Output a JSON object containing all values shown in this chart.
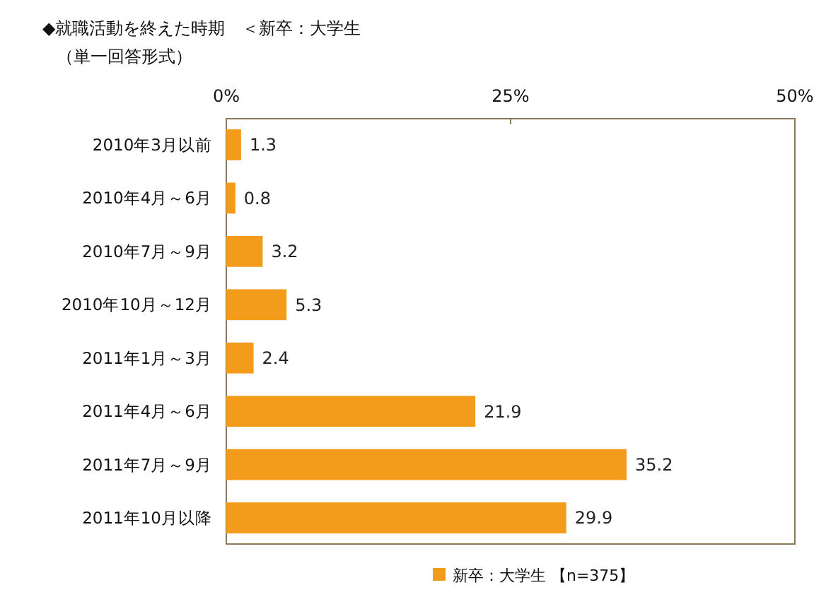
{
  "chart_data": {
    "type": "bar",
    "orientation": "horizontal",
    "title": "◆就職活動を終えた時期　＜新卒：大学生",
    "subtitle": "（単一回答形式）",
    "categories": [
      "2010年3月以前",
      "2010年4月～6月",
      "2010年7月～9月",
      "2010年10月～12月",
      "2011年1月～3月",
      "2011年4月～6月",
      "2011年7月～9月",
      "2011年10月以降"
    ],
    "series": [
      {
        "name": "新卒：大学生 【n=375】",
        "color": "#f39c1b",
        "values": [
          1.3,
          0.8,
          3.2,
          5.3,
          2.4,
          21.9,
          35.2,
          29.9
        ]
      }
    ],
    "xlim": [
      0,
      50
    ],
    "xticks": [
      {
        "value": 0,
        "label": "0%"
      },
      {
        "value": 25,
        "label": "25%"
      },
      {
        "value": 50,
        "label": "50%"
      }
    ],
    "data_labels": true,
    "legend": "bottom",
    "grid": false
  }
}
